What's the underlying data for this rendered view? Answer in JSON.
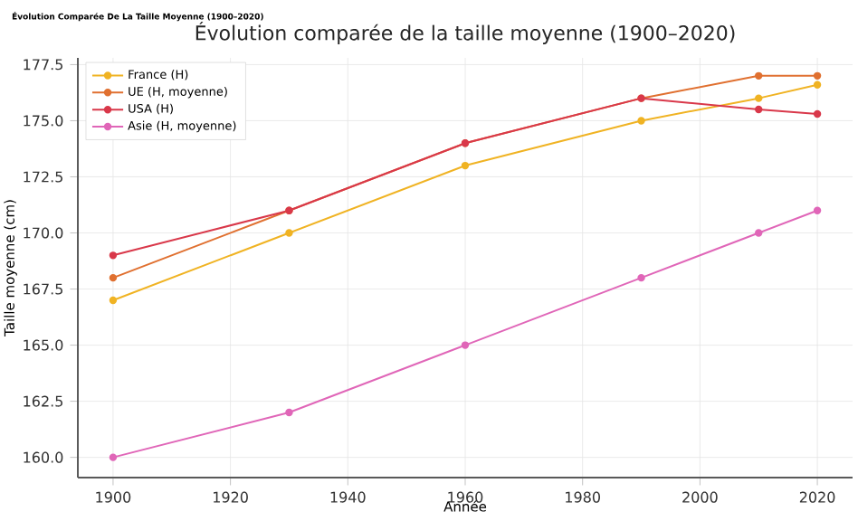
{
  "chart_data": {
    "type": "line",
    "title": "Évolution comparée de la taille moyenne (1900–2020)",
    "annotations": [
      "Évolution Comparée De La Taille Moyenne (1900–2020)"
    ],
    "xlabel": "Année",
    "ylabel": "Taille moyenne (cm)",
    "x": [
      1900,
      1930,
      1960,
      1990,
      2010,
      2020
    ],
    "series": [
      {
        "name": "France (H)",
        "color": "#f0b323",
        "values": [
          167,
          170,
          173,
          175,
          176,
          176.6
        ]
      },
      {
        "name": "UE (H, moyenne)",
        "color": "#e07030",
        "values": [
          168,
          171,
          174,
          176,
          177,
          177
        ]
      },
      {
        "name": "USA (H)",
        "color": "#d9384a",
        "values": [
          169,
          171,
          174,
          176,
          175.5,
          175.3
        ]
      },
      {
        "name": "Asie (H, moyenne)",
        "color": "#e066b8",
        "values": [
          160,
          162,
          165,
          168,
          170,
          171
        ]
      }
    ],
    "xlim": [
      1894,
      2026
    ],
    "ylim": [
      159.1,
      177.8
    ],
    "xticks": [
      1900,
      1920,
      1940,
      1960,
      1980,
      2000,
      2020
    ],
    "yticks": [
      {
        "value": 160,
        "label": "160.0"
      },
      {
        "value": 162.5,
        "label": "162.5"
      },
      {
        "value": 165,
        "label": "165.0"
      },
      {
        "value": 167.5,
        "label": "167.5"
      },
      {
        "value": 170,
        "label": "170.0"
      },
      {
        "value": 172.5,
        "label": "172.5"
      },
      {
        "value": 175,
        "label": "175.0"
      },
      {
        "value": 177.5,
        "label": "177.5"
      }
    ],
    "grid": true,
    "legend": "top left",
    "marker": "circle",
    "line_style": "solid"
  }
}
